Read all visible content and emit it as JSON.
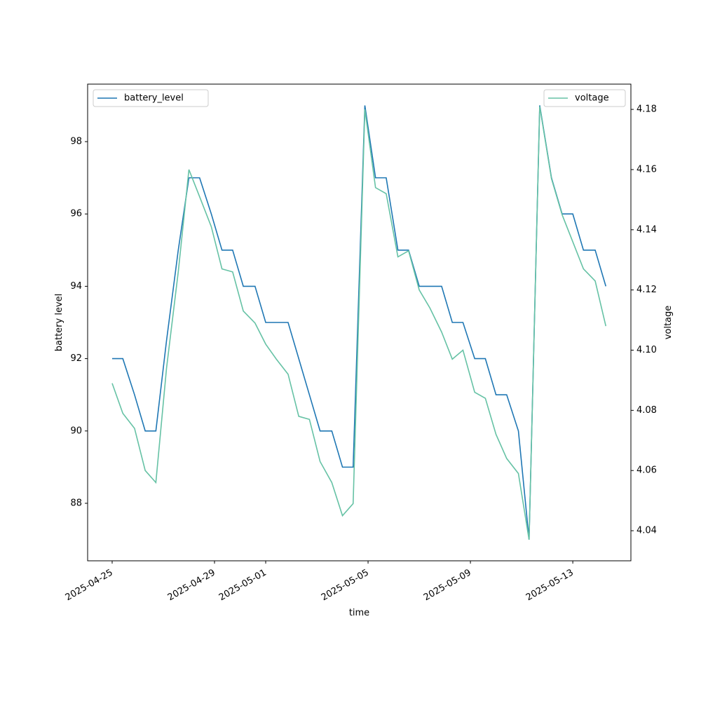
{
  "chart_data": {
    "type": "line",
    "x_label": "time",
    "y_label": "battery level",
    "y2_label": "voltage",
    "x": [
      "2025-04-25 00:00",
      "2025-04-25 10:00",
      "2025-04-25 21:00",
      "2025-04-26 07:00",
      "2025-04-26 17:00",
      "2025-04-27 03:00",
      "2025-04-27 14:00",
      "2025-04-28 00:00",
      "2025-04-28 10:00",
      "2025-04-28 21:00",
      "2025-04-29 07:00",
      "2025-04-29 17:00",
      "2025-04-30 03:00",
      "2025-04-30 14:00",
      "2025-05-01 00:00",
      "2025-05-01 10:00",
      "2025-05-01 21:00",
      "2025-05-02 07:00",
      "2025-05-02 17:00",
      "2025-05-03 03:00",
      "2025-05-03 14:00",
      "2025-05-04 00:00",
      "2025-05-04 10:00",
      "2025-05-04 21:00",
      "2025-05-05 07:00",
      "2025-05-05 17:00",
      "2025-05-06 04:00",
      "2025-05-06 14:00",
      "2025-05-07 00:00",
      "2025-05-07 10:00",
      "2025-05-07 21:00",
      "2025-05-08 07:00",
      "2025-05-08 17:00",
      "2025-05-09 04:00",
      "2025-05-09 14:00",
      "2025-05-10 00:00",
      "2025-05-10 10:00",
      "2025-05-10 21:00",
      "2025-05-11 07:00",
      "2025-05-11 17:00",
      "2025-05-12 04:00",
      "2025-05-12 14:00",
      "2025-05-13 00:00",
      "2025-05-13 10:00",
      "2025-05-13 21:00",
      "2025-05-14 07:00"
    ],
    "series": [
      {
        "name": "battery_level",
        "color": "#1f77b4",
        "axis": "y",
        "legend": "upper left",
        "values": [
          92,
          92,
          91,
          90,
          90,
          92.5,
          95,
          97,
          97,
          96,
          95,
          95,
          94,
          94,
          93,
          93,
          93,
          92,
          91,
          90,
          90,
          89,
          89,
          99,
          97,
          97,
          95,
          95,
          94,
          94,
          94,
          93,
          93,
          92,
          92,
          91,
          91,
          90,
          87,
          99,
          97,
          96,
          96,
          95,
          95,
          94
        ]
      },
      {
        "name": "voltage",
        "color": "#66c2a5",
        "axis": "y2",
        "legend": "upper right",
        "values": [
          4.089,
          4.079,
          4.074,
          4.06,
          4.056,
          4.094,
          4.126,
          4.16,
          4.151,
          4.141,
          4.127,
          4.126,
          4.113,
          4.109,
          4.102,
          4.097,
          4.092,
          4.078,
          4.077,
          4.063,
          4.056,
          4.045,
          4.049,
          4.18,
          4.154,
          4.152,
          4.131,
          4.133,
          4.12,
          4.114,
          4.106,
          4.097,
          4.1,
          4.086,
          4.084,
          4.072,
          4.064,
          4.059,
          4.037,
          4.181,
          4.157,
          4.145,
          4.136,
          4.127,
          4.123,
          4.108
        ]
      }
    ],
    "xlim": [
      "2025-04-24 01:00",
      "2025-05-15 06:30"
    ],
    "xticks": [
      "2025-04-25",
      "2025-04-29",
      "2025-05-01",
      "2025-05-05",
      "2025-05-09",
      "2025-05-13"
    ],
    "ylim": [
      86.41,
      99.59
    ],
    "yticks": [
      88,
      90,
      92,
      94,
      96,
      98
    ],
    "y2lim": [
      4.03,
      4.1884
    ],
    "y2ticks": [
      4.04,
      4.06,
      4.08,
      {
        "value": 4.1,
        "label": "4.10"
      },
      4.12,
      4.14,
      4.16,
      4.18
    ]
  }
}
